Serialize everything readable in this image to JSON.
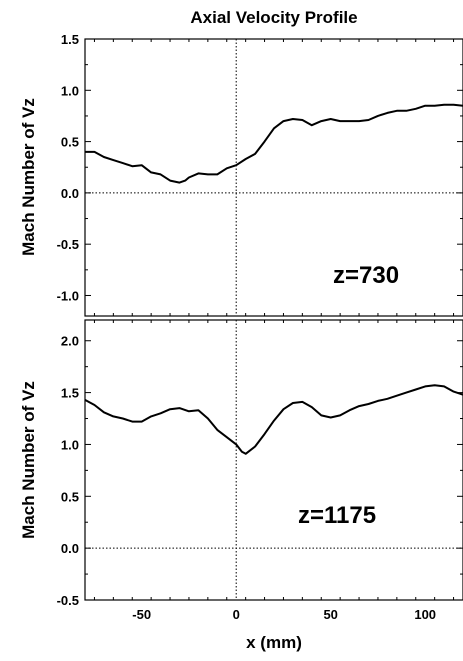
{
  "chart_data": [
    {
      "type": "line",
      "title": "Axial Velocity Profile",
      "ylabel": "Mach Number of Vz",
      "xlabel": "",
      "annotation": "z=730",
      "xlim": [
        -80,
        120
      ],
      "ylim": [
        -1.2,
        1.5
      ],
      "yticks": [
        -1.0,
        -0.5,
        0.0,
        0.5,
        1.0,
        1.5
      ],
      "ytick_labels": [
        "-1.0",
        "-0.5",
        "0.0",
        "0.5",
        "1.0",
        "1.5"
      ],
      "xticks": [
        -50,
        0,
        50,
        100
      ],
      "xtick_labels": [],
      "reference_lines": {
        "x": 0,
        "y": 0
      },
      "series": [
        {
          "x": [
            -80,
            -75,
            -70,
            -65,
            -60,
            -55,
            -50,
            -45,
            -40,
            -35,
            -30,
            -27,
            -25,
            -20,
            -15,
            -10,
            -5,
            0,
            5,
            10,
            15,
            20,
            25,
            30,
            35,
            40,
            45,
            50,
            55,
            60,
            65,
            70,
            75,
            80,
            85,
            90,
            95,
            100,
            105,
            110,
            115,
            120
          ],
          "values": [
            0.4,
            0.4,
            0.35,
            0.32,
            0.29,
            0.26,
            0.27,
            0.2,
            0.18,
            0.12,
            0.1,
            0.12,
            0.15,
            0.19,
            0.18,
            0.18,
            0.24,
            0.27,
            0.33,
            0.38,
            0.5,
            0.63,
            0.7,
            0.72,
            0.71,
            0.66,
            0.7,
            0.72,
            0.7,
            0.7,
            0.7,
            0.71,
            0.75,
            0.78,
            0.8,
            0.8,
            0.82,
            0.85,
            0.85,
            0.86,
            0.86,
            0.85
          ]
        }
      ]
    },
    {
      "type": "line",
      "title": "",
      "ylabel": "Mach Number of Vz",
      "xlabel": "x (mm)",
      "annotation": "z=1175",
      "xlim": [
        -80,
        120
      ],
      "ylim": [
        -0.5,
        2.2
      ],
      "yticks": [
        -0.5,
        0.0,
        0.5,
        1.0,
        1.5,
        2.0
      ],
      "ytick_labels": [
        "-0.5",
        "0.0",
        "0.5",
        "1.0",
        "1.5",
        "2.0"
      ],
      "xticks": [
        -50,
        0,
        50,
        100
      ],
      "xtick_labels": [
        "-50",
        "0",
        "50",
        "100"
      ],
      "reference_lines": {
        "x": 0,
        "y": 0
      },
      "series": [
        {
          "x": [
            -80,
            -75,
            -70,
            -65,
            -60,
            -55,
            -50,
            -45,
            -40,
            -35,
            -30,
            -25,
            -20,
            -15,
            -10,
            -5,
            0,
            3,
            5,
            10,
            15,
            20,
            25,
            30,
            35,
            40,
            45,
            50,
            55,
            60,
            65,
            70,
            75,
            80,
            85,
            90,
            95,
            100,
            105,
            110,
            115,
            120
          ],
          "values": [
            1.43,
            1.38,
            1.31,
            1.27,
            1.25,
            1.22,
            1.22,
            1.27,
            1.3,
            1.34,
            1.35,
            1.32,
            1.33,
            1.25,
            1.14,
            1.07,
            1.0,
            0.93,
            0.91,
            0.98,
            1.1,
            1.23,
            1.34,
            1.4,
            1.41,
            1.36,
            1.28,
            1.26,
            1.28,
            1.33,
            1.37,
            1.39,
            1.42,
            1.44,
            1.47,
            1.5,
            1.53,
            1.56,
            1.57,
            1.56,
            1.51,
            1.48
          ]
        }
      ]
    }
  ]
}
